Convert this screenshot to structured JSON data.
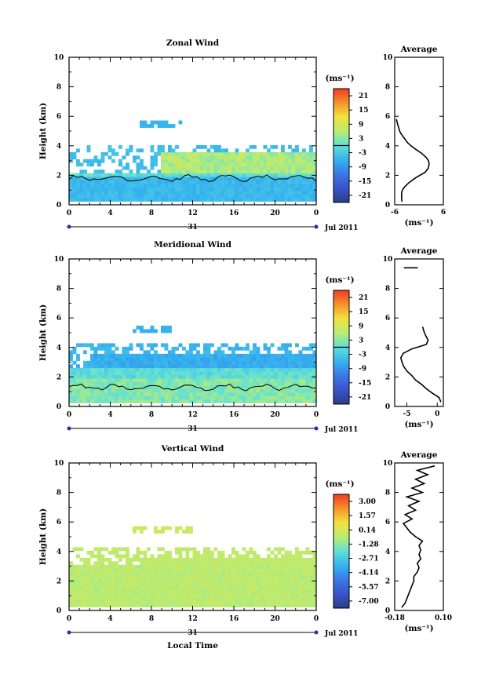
{
  "chart_data": [
    {
      "type": "heatmap",
      "title": "Zonal Wind",
      "ylabel": "Height (km)",
      "xlim": [
        0,
        24
      ],
      "ylim": [
        0,
        10
      ],
      "x_ticks": [
        "0",
        "4",
        "8",
        "12",
        "16",
        "20",
        "0"
      ],
      "y_ticks": [
        "0",
        "2",
        "4",
        "6",
        "8",
        "10"
      ],
      "date_marker": "31",
      "date_label": "Jul 2011",
      "colorbar": {
        "unit": "(ms⁻¹)",
        "labels": [
          "21",
          "15",
          "9",
          "3",
          "-3",
          "-9",
          "-15",
          "-21"
        ],
        "zero_line": 0
      },
      "field": "zonal",
      "average": {
        "title": "Average",
        "xlabel": "(ms⁻¹)",
        "xlim": [
          -6,
          6
        ],
        "x_ticks": [
          "-6",
          "6"
        ],
        "heights": [
          0.2,
          0.5,
          0.8,
          1.0,
          1.2,
          1.5,
          1.8,
          2.0,
          2.2,
          2.5,
          2.8,
          3.0,
          3.2,
          3.5,
          3.8,
          4.0,
          4.2,
          4.5,
          4.8,
          5.0,
          5.2,
          5.5,
          5.8
        ],
        "values": [
          -4.2,
          -4.3,
          -4.3,
          -4.1,
          -3.6,
          -2.5,
          -1.0,
          0.2,
          1.5,
          2.3,
          2.5,
          2.3,
          1.8,
          0.6,
          -1.0,
          -2.0,
          -2.8,
          -3.6,
          -4.4,
          -4.8,
          -5.0,
          -5.3,
          -5.6
        ]
      }
    },
    {
      "type": "heatmap",
      "title": "Meridional Wind",
      "ylabel": "Height (km)",
      "xlim": [
        0,
        24
      ],
      "ylim": [
        0,
        10
      ],
      "x_ticks": [
        "0",
        "4",
        "8",
        "12",
        "16",
        "20",
        "0"
      ],
      "y_ticks": [
        "0",
        "2",
        "4",
        "6",
        "8",
        "10"
      ],
      "date_marker": "31",
      "date_label": "Jul 2011",
      "colorbar": {
        "unit": "(ms⁻¹)",
        "labels": [
          "21",
          "15",
          "9",
          "3",
          "-3",
          "-9",
          "-15",
          "-21"
        ],
        "zero_line": 0
      },
      "field": "meridional",
      "average": {
        "title": "Average",
        "xlabel": "(ms⁻¹)",
        "xlim": [
          -7,
          1
        ],
        "x_ticks": [
          "-5",
          "0"
        ],
        "heights": [
          0.3,
          0.6,
          0.9,
          1.2,
          1.5,
          1.8,
          2.1,
          2.4,
          2.7,
          3.0,
          3.3,
          3.6,
          3.9,
          4.2,
          4.5,
          4.8,
          5.1,
          5.4
        ],
        "values": [
          0.6,
          0.3,
          -0.8,
          -1.8,
          -2.6,
          -3.6,
          -4.2,
          -5.0,
          -5.5,
          -5.8,
          -6.0,
          -5.6,
          -4.2,
          -1.8,
          -1.5,
          -1.9,
          -2.2,
          -2.4
        ],
        "top_segment": {
          "heights": [
            9.4,
            9.4
          ],
          "values": [
            -5.5,
            -3.2
          ]
        }
      }
    },
    {
      "type": "heatmap",
      "title": "Vertical Wind",
      "xlabel": "Local Time",
      "ylabel": "Height (km)",
      "xlim": [
        0,
        24
      ],
      "ylim": [
        0,
        10
      ],
      "x_ticks": [
        "0",
        "4",
        "8",
        "12",
        "16",
        "20",
        "0"
      ],
      "y_ticks": [
        "0",
        "2",
        "4",
        "6",
        "8",
        "10"
      ],
      "date_marker": "31",
      "date_label": "Jul 2011",
      "colorbar": {
        "unit": "(ms⁻¹)",
        "labels": [
          "3.00",
          "1.57",
          "0.14",
          "-1.28",
          "-2.71",
          "-4.14",
          "-5.57",
          "-7.00"
        ]
      },
      "field": "vertical",
      "average": {
        "title": "Average",
        "xlabel": "(ms⁻¹)",
        "xlim": [
          -0.18,
          0.1
        ],
        "x_ticks": [
          "-0.18",
          "0.10"
        ],
        "heights": [
          0.2,
          0.5,
          0.8,
          1.1,
          1.4,
          1.7,
          2.0,
          2.3,
          2.6,
          2.9,
          3.2,
          3.5,
          3.8,
          4.1,
          4.4,
          4.7,
          5.0,
          5.3,
          5.6,
          5.9,
          6.2,
          6.5,
          6.8,
          7.1,
          7.4,
          7.7,
          8.0,
          8.3,
          8.6,
          8.9,
          9.2,
          9.5,
          9.8
        ],
        "values": [
          -0.14,
          -0.12,
          -0.11,
          -0.1,
          -0.09,
          -0.08,
          -0.07,
          -0.07,
          -0.05,
          -0.04,
          -0.05,
          -0.03,
          -0.04,
          -0.03,
          -0.04,
          -0.02,
          -0.06,
          -0.09,
          -0.11,
          -0.13,
          -0.08,
          -0.12,
          -0.06,
          -0.1,
          -0.04,
          -0.11,
          -0.02,
          -0.08,
          -0.01,
          -0.06,
          0.01,
          -0.05,
          0.05
        ]
      }
    }
  ]
}
